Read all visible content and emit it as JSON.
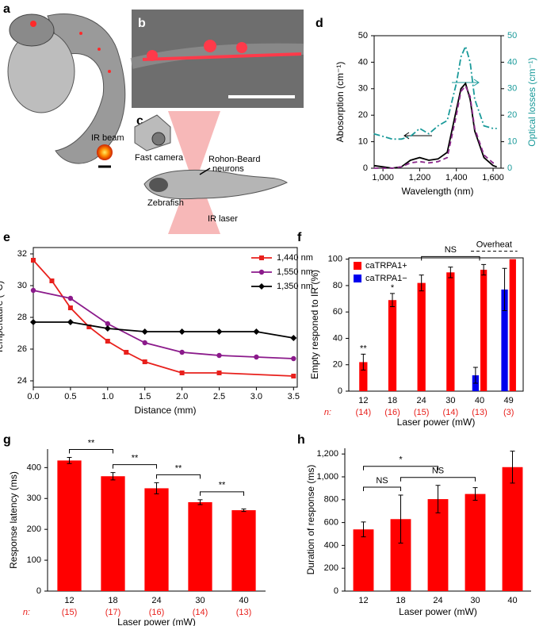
{
  "panels": {
    "a": {
      "label": "a",
      "ir_beam": "IR beam"
    },
    "b": {
      "label": "b"
    },
    "c": {
      "label": "c",
      "fast_camera": "Fast camera",
      "neurons": [
        "Rohon-Beard",
        "neurons"
      ],
      "zebrafish": "Zebrafish",
      "ir_laser": "IR laser"
    }
  },
  "chart_data": [
    {
      "type": "line",
      "panel": "d",
      "frame": true,
      "xlabel": "Wavelength (nm)",
      "ylabel": "Abosorption (cm⁻¹)",
      "y2label": "Optical losses (cm⁻¹)",
      "y2color": "#1a9a9a",
      "xlim": [
        952,
        1643
      ],
      "xticks": [
        {
          "value": 1000,
          "label": "1,000"
        },
        {
          "value": 1200,
          "label": "1,200"
        },
        {
          "value": 1400,
          "label": "1,400"
        },
        {
          "value": 1600,
          "label": "1,600"
        }
      ],
      "ylim": [
        0,
        50
      ],
      "yticks": [
        0,
        10,
        20,
        30,
        40,
        50
      ],
      "y2lim": [
        0,
        50
      ],
      "y2ticks": [
        0,
        10,
        20,
        30,
        40,
        50
      ],
      "x": [
        950,
        1000,
        1050,
        1100,
        1150,
        1200,
        1250,
        1300,
        1350,
        1400,
        1425,
        1450,
        1475,
        1500,
        1550,
        1600,
        1620
      ],
      "series": [
        {
          "color": "#000000",
          "style": "solid",
          "values": [
            1,
            0.5,
            0,
            0.5,
            3,
            4,
            3,
            3.5,
            6,
            22,
            30,
            32,
            26,
            14,
            4,
            1,
            0.5
          ]
        },
        {
          "color": "#8b2a8b",
          "style": "dashed",
          "values": [
            0,
            0,
            0,
            0.5,
            2,
            2.5,
            2,
            2.5,
            4,
            20,
            29,
            31,
            27,
            15,
            5,
            2,
            2
          ]
        },
        {
          "color": "#1a9a9a",
          "style": "dashdot",
          "axis": "y2",
          "values": [
            13,
            12,
            11,
            11,
            12,
            15,
            13,
            16,
            18,
            32,
            42,
            46,
            40,
            26,
            16,
            15,
            15
          ]
        }
      ]
    },
    {
      "type": "line",
      "panel": "e",
      "frame": true,
      "xlabel": "Distance (mm)",
      "ylabel": "Temperature (°C)",
      "xlim": [
        0,
        3.55
      ],
      "xticks": [
        {
          "value": 0,
          "label": "0.0"
        },
        0.5,
        {
          "value": 1,
          "label": "1.0"
        },
        1.5,
        {
          "value": 2,
          "label": "2.0"
        },
        2.5,
        {
          "value": 3,
          "label": "3.0"
        },
        3.5
      ],
      "ylim": [
        23.6,
        32.4
      ],
      "yticks": [
        24,
        26,
        28,
        30,
        32
      ],
      "series": [
        {
          "name": "1,440 nm",
          "color": "#e8201c",
          "marker": "square",
          "x": [
            0,
            0.25,
            0.5,
            0.75,
            1,
            1.25,
            1.5,
            2,
            2.5,
            3.5
          ],
          "values": [
            31.6,
            30.3,
            28.6,
            27.4,
            26.5,
            25.8,
            25.2,
            24.5,
            24.5,
            24.3
          ]
        },
        {
          "name": "1,550 nm",
          "color": "#8b1a8b",
          "marker": "circle",
          "x": [
            0,
            0.5,
            1,
            1.5,
            2,
            2.5,
            3,
            3.5
          ],
          "values": [
            29.7,
            29.2,
            27.6,
            26.4,
            25.8,
            25.6,
            25.5,
            25.4
          ]
        },
        {
          "name": "1,350 nm",
          "color": "#000000",
          "marker": "diamond",
          "x": [
            0,
            0.5,
            1,
            1.5,
            2,
            2.5,
            3,
            3.5
          ],
          "values": [
            27.7,
            27.7,
            27.3,
            27.1,
            27.1,
            27.1,
            27.1,
            26.7
          ]
        }
      ]
    },
    {
      "type": "bar",
      "panel": "f",
      "frame": true,
      "legend": true,
      "xlabel": "Laser power (mW)",
      "ylabel": "Empty responed to IR (%)",
      "categories": [
        "12",
        "18",
        "24",
        "30",
        "40",
        "49"
      ],
      "n_label": "n:",
      "n": [
        "(14)",
        "(16)",
        "(15)",
        "(14)",
        "(13)",
        "(3)"
      ],
      "ylim": [
        0,
        101
      ],
      "yticks": [
        0,
        20,
        40,
        60,
        80,
        100
      ],
      "series": [
        {
          "name": "caTRPA1+",
          "color": "#ff0000",
          "values": [
            22,
            69,
            82,
            90,
            92,
            100
          ],
          "errors": [
            6,
            5,
            6,
            4,
            4,
            null
          ]
        },
        {
          "name": "caTRPA1−",
          "color": "#0000ee",
          "values": [
            null,
            null,
            null,
            null,
            12,
            77
          ],
          "errors": [
            null,
            null,
            null,
            null,
            6,
            16
          ]
        }
      ],
      "annotations": [
        {
          "text": "**",
          "at": "12"
        },
        {
          "text": "*",
          "at": "18"
        },
        {
          "text": "NS",
          "between": [
            "24",
            "40"
          ]
        },
        {
          "text": "Overheat",
          "between": [
            "40",
            "49"
          ],
          "style": "dashed"
        }
      ]
    },
    {
      "type": "bar",
      "panel": "g",
      "xlabel": "Laser power (mW)",
      "ylabel": "Response latency (ms)",
      "categories": [
        "12",
        "18",
        "24",
        "30",
        "40"
      ],
      "n_label": "n:",
      "n": [
        "(15)",
        "(17)",
        "(16)",
        "(14)",
        "(13)"
      ],
      "ylim": [
        0,
        460
      ],
      "yticks": [
        0,
        100,
        200,
        300,
        400
      ],
      "series": [
        {
          "color": "#ff0000",
          "values": [
            423,
            372,
            333,
            288,
            262
          ],
          "errors": [
            10,
            12,
            18,
            8,
            4
          ]
        }
      ],
      "annotations": [
        {
          "text": "**",
          "between": [
            "12",
            "18"
          ]
        },
        {
          "text": "**",
          "between": [
            "18",
            "24"
          ]
        },
        {
          "text": "**",
          "between": [
            "24",
            "30"
          ]
        },
        {
          "text": "**",
          "between": [
            "30",
            "40"
          ]
        }
      ]
    },
    {
      "type": "bar",
      "panel": "h",
      "xlabel": "Laser power (mW)",
      "ylabel": "Duration of response (ms)",
      "categories": [
        "12",
        "18",
        "24",
        "30",
        "40"
      ],
      "ylim": [
        0,
        1250
      ],
      "yticks": [
        0,
        200,
        400,
        600,
        800,
        {
          "value": 1000,
          "label": "1,000"
        },
        {
          "value": 1200,
          "label": "1,200"
        }
      ],
      "series": [
        {
          "color": "#ff0000",
          "values": [
            540,
            630,
            805,
            850,
            1085
          ],
          "errors": [
            65,
            210,
            120,
            55,
            140
          ]
        }
      ],
      "annotations": [
        {
          "text": "NS",
          "between": [
            "12",
            "18"
          ]
        },
        {
          "text": "NS",
          "between": [
            "18",
            "30"
          ]
        },
        {
          "text": "*",
          "between": [
            "12",
            "24"
          ]
        }
      ]
    }
  ]
}
